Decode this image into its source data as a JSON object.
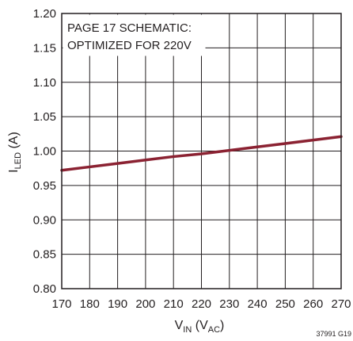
{
  "chart_data": {
    "type": "line",
    "xlabel": {
      "main": "V",
      "main_sub": "IN",
      "unit_open": " (V",
      "unit_sub": "AC",
      "unit_close": ")"
    },
    "ylabel": {
      "main": "I",
      "main_sub": "LED",
      "unit": " (A)"
    },
    "xlim": [
      170,
      270
    ],
    "ylim": [
      0.8,
      1.2
    ],
    "x_ticks": [
      "170",
      "180",
      "190",
      "200",
      "210",
      "220",
      "230",
      "240",
      "250",
      "260",
      "270"
    ],
    "y_ticks": [
      "0.80",
      "0.85",
      "0.90",
      "0.95",
      "1.00",
      "1.05",
      "1.10",
      "1.15",
      "1.20"
    ],
    "grid": true,
    "annotation": {
      "line1": "PAGE 17 SCHEMATIC:",
      "line2": "OPTIMIZED FOR 220V"
    },
    "figure_code": "37991 G19",
    "series": [
      {
        "color": "#8b2232",
        "x": [
          170,
          180,
          190,
          200,
          210,
          220,
          230,
          240,
          250,
          260,
          270
        ],
        "y": [
          0.972,
          0.977,
          0.982,
          0.987,
          0.992,
          0.996,
          1.001,
          1.006,
          1.011,
          1.016,
          1.021
        ]
      }
    ]
  }
}
